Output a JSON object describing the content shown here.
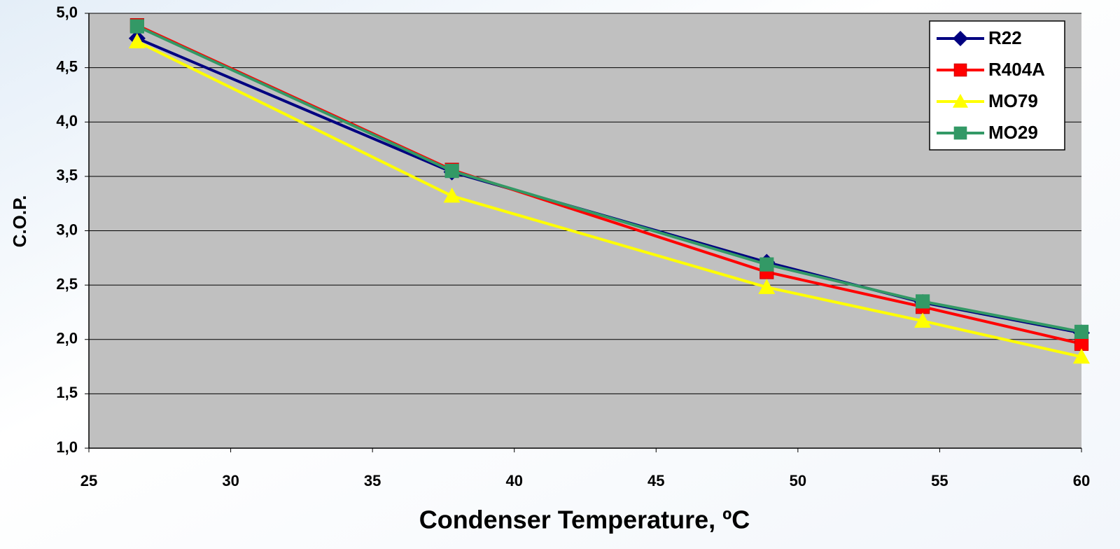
{
  "chart_data": {
    "type": "line",
    "x_label": "Condenser Temperature, ºC",
    "y_label": "C.O.P.",
    "x": [
      26.7,
      37.8,
      48.9,
      54.4,
      60
    ],
    "series": [
      {
        "name": "R22",
        "color": "#000080",
        "marker": "diamond",
        "values": [
          4.77,
          3.54,
          2.71,
          2.34,
          2.06
        ]
      },
      {
        "name": "R404A",
        "color": "#ff0000",
        "marker": "square",
        "values": [
          4.89,
          3.56,
          2.62,
          2.3,
          1.96
        ]
      },
      {
        "name": "MO79",
        "color": "#ffff00",
        "marker": "triangle",
        "values": [
          4.74,
          3.32,
          2.48,
          2.17,
          1.84
        ]
      },
      {
        "name": "MO29",
        "color": "#339966",
        "marker": "square",
        "values": [
          4.88,
          3.55,
          2.69,
          2.35,
          2.07
        ]
      }
    ],
    "xlim": [
      25,
      60
    ],
    "xticks": [
      25,
      30,
      35,
      40,
      45,
      50,
      55,
      60
    ],
    "ylim": [
      1.0,
      5.0
    ],
    "yticks": [
      {
        "value": 1.0,
        "label": "1,0"
      },
      {
        "value": 1.5,
        "label": "1,5"
      },
      {
        "value": 2.0,
        "label": "2,0"
      },
      {
        "value": 2.5,
        "label": "2,5"
      },
      {
        "value": 3.0,
        "label": "3,0"
      },
      {
        "value": 3.5,
        "label": "3,5"
      },
      {
        "value": 4.0,
        "label": "4,0"
      },
      {
        "value": 4.5,
        "label": "4,5"
      },
      {
        "value": 5.0,
        "label": "5,0"
      }
    ],
    "grid": true,
    "legend": "top-right",
    "plot_background": "#c0c0c0"
  }
}
